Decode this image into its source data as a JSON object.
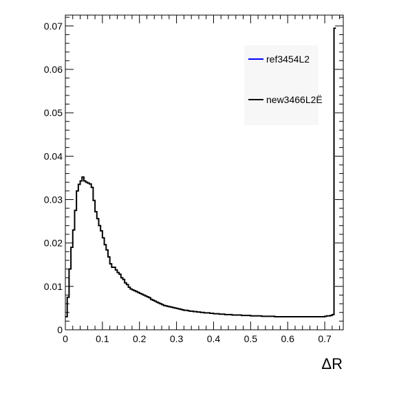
{
  "chart_data": {
    "type": "histogram",
    "xlabel": "ΔR",
    "ylabel": "",
    "xlim": [
      0,
      0.75
    ],
    "ylim": [
      0,
      0.0725
    ],
    "grid": false,
    "legend_position": "top-right",
    "x_ticks": [
      0,
      0.1,
      0.2,
      0.3,
      0.4,
      0.5,
      0.6,
      0.7
    ],
    "x_tick_labels": [
      "0",
      "0.1",
      "0.2",
      "0.3",
      "0.4",
      "0.5",
      "0.6",
      "0.7"
    ],
    "y_ticks": [
      0,
      0.01,
      0.02,
      0.03,
      0.04,
      0.05,
      0.06,
      0.07
    ],
    "y_tick_labels": [
      "0",
      "0.01",
      "0.02",
      "0.03",
      "0.04",
      "0.05",
      "0.06",
      "0.07"
    ],
    "bin_width": 0.005,
    "series": [
      {
        "name": "ref3454L2",
        "color": "#0000ff",
        "values": []
      },
      {
        "name": "new3466L2Ë",
        "color": "#000000",
        "values": [
          0.003,
          0.0075,
          0.014,
          0.019,
          0.023,
          0.0275,
          0.032,
          0.0335,
          0.0343,
          0.0352,
          0.0343,
          0.034,
          0.0338,
          0.0336,
          0.0328,
          0.0298,
          0.0272,
          0.0256,
          0.024,
          0.0228,
          0.0212,
          0.0196,
          0.0184,
          0.0168,
          0.0152,
          0.0144,
          0.0144,
          0.0138,
          0.0132,
          0.0128,
          0.012,
          0.0116,
          0.0108,
          0.0104,
          0.0098,
          0.0094,
          0.0092,
          0.009,
          0.0088,
          0.0086,
          0.0084,
          0.0082,
          0.008,
          0.0078,
          0.0076,
          0.0074,
          0.007,
          0.0068,
          0.0066,
          0.0064,
          0.0062,
          0.006,
          0.0058,
          0.0056,
          0.0055,
          0.0054,
          0.0053,
          0.0052,
          0.0051,
          0.005,
          0.0049,
          0.0048,
          0.0047,
          0.0046,
          0.0045,
          0.0045,
          0.0044,
          0.0043,
          0.0043,
          0.0042,
          0.0042,
          0.0041,
          0.0041,
          0.004,
          0.004,
          0.0039,
          0.0039,
          0.0039,
          0.0038,
          0.0038,
          0.0037,
          0.0037,
          0.0037,
          0.0036,
          0.0036,
          0.0036,
          0.0035,
          0.0035,
          0.0035,
          0.0035,
          0.0034,
          0.0034,
          0.0034,
          0.0034,
          0.0034,
          0.0033,
          0.0033,
          0.0033,
          0.0033,
          0.0033,
          0.0032,
          0.0032,
          0.0032,
          0.0032,
          0.0032,
          0.0032,
          0.0031,
          0.0031,
          0.0031,
          0.0031,
          0.0031,
          0.0031,
          0.0031,
          0.003,
          0.003,
          0.003,
          0.003,
          0.003,
          0.003,
          0.003,
          0.003,
          0.003,
          0.003,
          0.003,
          0.003,
          0.003,
          0.003,
          0.003,
          0.003,
          0.003,
          0.003,
          0.003,
          0.003,
          0.003,
          0.003,
          0.003,
          0.003,
          0.003,
          0.003,
          0.003,
          0.0031,
          0.0032,
          0.0032,
          0.0033,
          0.0035,
          0.0695
        ]
      }
    ]
  }
}
